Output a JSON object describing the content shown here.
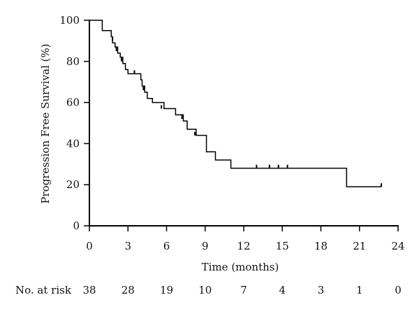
{
  "chart_data": {
    "type": "line",
    "subtype": "kaplan-meier",
    "title": "",
    "xlabel": "Time (months)",
    "ylabel": "Progression Free Survival (%)",
    "xlim": [
      0,
      24
    ],
    "ylim": [
      0,
      100
    ],
    "x_ticks": [
      0,
      3,
      6,
      9,
      12,
      15,
      18,
      21,
      24
    ],
    "y_ticks": [
      0,
      20,
      40,
      60,
      80,
      100
    ],
    "grid": false,
    "series": [
      {
        "steps": [
          [
            0,
            100
          ],
          [
            1.0,
            95
          ],
          [
            1.7,
            92
          ],
          [
            1.8,
            89
          ],
          [
            2.0,
            87
          ],
          [
            2.2,
            84
          ],
          [
            2.4,
            82
          ],
          [
            2.6,
            79
          ],
          [
            2.8,
            76
          ],
          [
            3.0,
            74
          ],
          [
            4.0,
            71
          ],
          [
            4.1,
            68
          ],
          [
            4.3,
            65
          ],
          [
            4.5,
            62
          ],
          [
            4.9,
            60
          ],
          [
            5.8,
            57
          ],
          [
            6.7,
            54
          ],
          [
            7.3,
            51
          ],
          [
            7.6,
            47
          ],
          [
            8.3,
            44
          ],
          [
            9.1,
            36
          ],
          [
            9.8,
            32
          ],
          [
            11.0,
            28
          ],
          [
            20.0,
            19
          ],
          [
            22.7,
            19
          ]
        ],
        "censored": [
          [
            1.8,
            90
          ],
          [
            2.1,
            85
          ],
          [
            2.5,
            80
          ],
          [
            3.5,
            74
          ],
          [
            4.2,
            66
          ],
          [
            5.6,
            57
          ],
          [
            7.2,
            52
          ],
          [
            8.2,
            44
          ],
          [
            13.0,
            28
          ],
          [
            14.0,
            28
          ],
          [
            14.7,
            28
          ],
          [
            15.4,
            28
          ],
          [
            22.7,
            19
          ]
        ]
      }
    ],
    "risk_table": {
      "label": "No. at risk",
      "times": [
        0,
        3,
        6,
        9,
        12,
        15,
        18,
        21,
        24
      ],
      "values": [
        "38",
        "28",
        "19",
        "10",
        "7",
        "4",
        "3",
        "1",
        "0"
      ]
    }
  }
}
